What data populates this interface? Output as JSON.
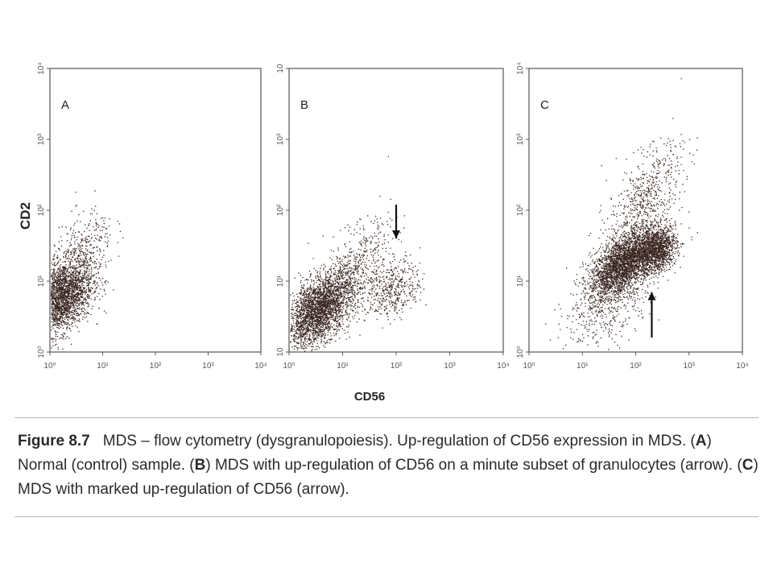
{
  "figure": {
    "y_axis_label": "CD2",
    "x_axis_label": "CD56"
  },
  "caption": {
    "label": "Figure 8.7",
    "lead": "MDS – flow cytometry (dysgranulopoiesis). Up-regulation of CD56 expression in MDS. (",
    "a": "A",
    "a_text": ") Normal (control) sample. (",
    "b": "B",
    "b_text": ") MDS with up-regulation of CD56 on a minute subset of granulocytes (arrow). (",
    "c": "C",
    "c_text": ") MDS with marked up-regulation of CD56 (arrow)."
  },
  "colors": {
    "dots": "#3a2620",
    "frame": "#555555",
    "axis_text": "#555555"
  },
  "chart_data": [
    {
      "type": "scatter",
      "panel_label": "A",
      "xscale": "log",
      "yscale": "log",
      "xlim": [
        1,
        10000
      ],
      "ylim": [
        1,
        10000
      ],
      "x_ticks": [
        "10⁰",
        "10¹",
        "10²",
        "10³",
        "10⁴"
      ],
      "y_ticks": [
        "10⁰",
        "10¹",
        "10²",
        "10³",
        "10⁴"
      ],
      "clusters": [
        {
          "center": [
            1.6,
            6.0
          ],
          "spread": [
            0.3,
            0.24
          ],
          "tilt": 0.35,
          "points": 2600
        },
        {
          "center": [
            4.0,
            25.0
          ],
          "spread": [
            0.3,
            0.28
          ],
          "tilt": 0.5,
          "points": 350
        }
      ],
      "arrow": null
    },
    {
      "type": "scatter",
      "panel_label": "B",
      "xscale": "log",
      "yscale": "log",
      "xlim": [
        1,
        10000
      ],
      "ylim": [
        1,
        10000
      ],
      "x_ticks": [
        "10⁰",
        "10¹",
        "10²",
        "10³",
        "10⁴"
      ],
      "y_ticks": [
        "10",
        "10¹",
        "10²",
        "10³",
        "10"
      ],
      "clusters": [
        {
          "center": [
            3.5,
            4.0
          ],
          "spread": [
            0.3,
            0.22
          ],
          "tilt": 0.4,
          "points": 2600
        },
        {
          "center": [
            15.0,
            12.0
          ],
          "spread": [
            0.35,
            0.3
          ],
          "tilt": 0.6,
          "points": 650
        },
        {
          "center": [
            90.0,
            8.0
          ],
          "spread": [
            0.25,
            0.2
          ],
          "tilt": 0.2,
          "points": 420
        }
      ],
      "arrow": {
        "direction": "down",
        "x": 100,
        "y_from": 120,
        "y_to": 40
      }
    },
    {
      "type": "scatter",
      "panel_label": "C",
      "xscale": "log",
      "yscale": "log",
      "xlim": [
        1,
        10000
      ],
      "ylim": [
        1,
        10000
      ],
      "x_ticks": [
        "10⁰",
        "10¹",
        "10²",
        "10³",
        "10⁴"
      ],
      "y_ticks": [
        "10⁰",
        "10¹",
        "10²",
        "10³",
        "10⁴"
      ],
      "clusters": [
        {
          "center": [
            60.0,
            18.0
          ],
          "spread": [
            0.32,
            0.2
          ],
          "tilt": 0.45,
          "points": 3000
        },
        {
          "center": [
            250.0,
            28.0
          ],
          "spread": [
            0.18,
            0.16
          ],
          "tilt": 0.2,
          "points": 1200
        },
        {
          "center": [
            150.0,
            150.0
          ],
          "spread": [
            0.35,
            0.3
          ],
          "tilt": 0.6,
          "points": 600
        },
        {
          "center": [
            30.0,
            5.0
          ],
          "spread": [
            0.4,
            0.3
          ],
          "tilt": 0.3,
          "points": 400
        }
      ],
      "arrow": {
        "direction": "up",
        "x": 200,
        "y_from": 1.6,
        "y_to": 7
      }
    }
  ]
}
